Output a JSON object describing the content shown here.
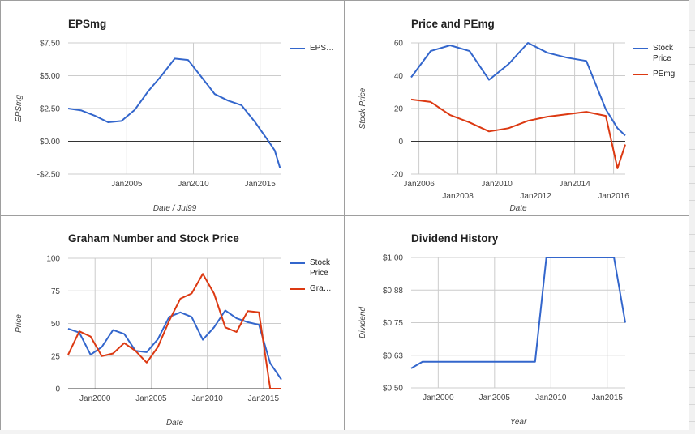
{
  "colors": {
    "blue": "#3366cc",
    "red": "#dc3912",
    "axis": "#333333",
    "grid": "#cccccc",
    "tick": "#444444"
  },
  "panels": [
    {
      "title": "EPSmg",
      "legend": [
        {
          "label": "EPS…",
          "color": "#3366cc"
        }
      ]
    },
    {
      "title": "Price and PEmg",
      "legend": [
        {
          "label": "Stock Price",
          "color": "#3366cc"
        },
        {
          "label": "PEmg",
          "color": "#dc3912"
        }
      ]
    },
    {
      "title": "Graham Number and Stock Price",
      "legend": [
        {
          "label": "Stock Price",
          "color": "#3366cc"
        },
        {
          "label": "Gra…",
          "color": "#dc3912"
        }
      ]
    },
    {
      "title": "Dividend History",
      "legend": []
    }
  ],
  "chart_data": [
    {
      "type": "line",
      "title": "EPSmg",
      "xlabel": "Date / Jul99",
      "ylabel": "EPSmg",
      "xlim": [
        2000.6,
        2016.6
      ],
      "ylim": [
        -2.5,
        7.5
      ],
      "yticks": [
        -2.5,
        0,
        2.5,
        5,
        7.5
      ],
      "ytick_labels": [
        "-$2.50",
        "$0.00",
        "$2.50",
        "$5.00",
        "$7.50"
      ],
      "xticks": [
        2005,
        2010,
        2015
      ],
      "xtick_labels": [
        "Jan2005",
        "Jan2010",
        "Jan2015"
      ],
      "baseline": 0,
      "series": [
        {
          "name": "EPS…",
          "color": "#3366cc",
          "x": [
            2000.6,
            2001.6,
            2002.6,
            2003.6,
            2004.6,
            2005.6,
            2006.6,
            2007.6,
            2008.6,
            2009.6,
            2010.6,
            2011.6,
            2012.6,
            2013.6,
            2014.6,
            2015.6,
            2016.1,
            2016.5
          ],
          "y": [
            2.5,
            2.35,
            1.95,
            1.45,
            1.55,
            2.4,
            3.8,
            5.0,
            6.3,
            6.2,
            4.9,
            3.6,
            3.1,
            2.75,
            1.5,
            0.05,
            -0.7,
            -2.05
          ]
        }
      ]
    },
    {
      "type": "line",
      "title": "Price and PEmg",
      "xlabel": "Date",
      "ylabel": "Stock Price",
      "xlim": [
        2005.6,
        2016.6
      ],
      "ylim": [
        -20,
        60
      ],
      "yticks": [
        -20,
        0,
        20,
        40,
        60
      ],
      "ytick_labels": [
        "-20",
        "0",
        "20",
        "40",
        "60"
      ],
      "xticks": [
        2006,
        2008,
        2010,
        2012,
        2014,
        2016
      ],
      "xtick_labels": [
        "Jan2006",
        "Jan2008",
        "Jan2010",
        "Jan2012",
        "Jan2014",
        "Jan2016"
      ],
      "xtick_staggered": true,
      "baseline": 0,
      "series": [
        {
          "name": "Stock Price",
          "color": "#3366cc",
          "x": [
            2005.6,
            2006.6,
            2007.6,
            2008.6,
            2009.6,
            2010.6,
            2011.6,
            2012.6,
            2013.6,
            2014.6,
            2015.6,
            2016.2,
            2016.6
          ],
          "y": [
            39,
            55,
            58.5,
            55,
            37.5,
            47,
            60,
            54,
            51,
            49,
            19.5,
            8,
            3.5
          ]
        },
        {
          "name": "PEmg",
          "color": "#dc3912",
          "x": [
            2005.6,
            2006.6,
            2007.6,
            2008.6,
            2009.6,
            2010.6,
            2011.6,
            2012.6,
            2013.6,
            2014.6,
            2015.6,
            2016.2,
            2016.6
          ],
          "y": [
            25.5,
            24,
            16,
            11.5,
            6,
            8,
            12.5,
            15,
            16.5,
            18,
            15.5,
            -16.5,
            -2
          ]
        }
      ]
    },
    {
      "type": "line",
      "title": "Graham Number and Stock Price",
      "xlabel": "Date",
      "ylabel": "Price",
      "xlim": [
        1997.6,
        2016.6
      ],
      "ylim": [
        0,
        100
      ],
      "yticks": [
        0,
        25,
        50,
        75,
        100
      ],
      "ytick_labels": [
        "0",
        "25",
        "50",
        "75",
        "100"
      ],
      "xticks": [
        2000,
        2005,
        2010,
        2015
      ],
      "xtick_labels": [
        "Jan2000",
        "Jan2005",
        "Jan2010",
        "Jan2015"
      ],
      "baseline": 0,
      "series": [
        {
          "name": "Stock Price",
          "color": "#3366cc",
          "x": [
            1997.6,
            1998.6,
            1999.6,
            2000.6,
            2001.6,
            2002.6,
            2003.6,
            2004.6,
            2005.6,
            2006.6,
            2007.6,
            2008.6,
            2009.6,
            2010.6,
            2011.6,
            2012.6,
            2013.6,
            2014.6,
            2015.6,
            2016.6
          ],
          "y": [
            46,
            43,
            26,
            32,
            45,
            42,
            29,
            28,
            38,
            55,
            58.5,
            55,
            37.5,
            47,
            60,
            54,
            51,
            49,
            19.5,
            7
          ]
        },
        {
          "name": "Gra…",
          "color": "#dc3912",
          "x": [
            1997.6,
            1998.6,
            1999.6,
            2000.6,
            2001.6,
            2002.6,
            2003.6,
            2004.6,
            2005.6,
            2006.6,
            2007.6,
            2008.6,
            2009.6,
            2010.6,
            2011.6,
            2012.6,
            2013.6,
            2014.6,
            2015.6,
            2016.6
          ],
          "y": [
            26,
            44,
            40,
            25,
            27,
            35,
            29,
            20,
            32,
            52,
            69,
            73,
            88,
            73,
            47,
            43.5,
            59.5,
            58.5,
            0,
            0
          ]
        }
      ]
    },
    {
      "type": "line",
      "title": "Dividend History",
      "xlabel": "Year",
      "ylabel": "Dividend",
      "xlim": [
        1997.6,
        2016.6
      ],
      "ylim": [
        0.5,
        1.0
      ],
      "yticks": [
        0.5,
        0.625,
        0.75,
        0.875,
        1.0
      ],
      "ytick_labels": [
        "$0.50",
        "$0.63",
        "$0.75",
        "$0.88",
        "$1.00"
      ],
      "xticks": [
        2000,
        2005,
        2010,
        2015
      ],
      "xtick_labels": [
        "Jan2000",
        "Jan2005",
        "Jan2010",
        "Jan2015"
      ],
      "series": [
        {
          "name": "Dividend",
          "color": "#3366cc",
          "x": [
            1997.6,
            1998.6,
            1999.6,
            2000.6,
            2001.6,
            2002.6,
            2003.6,
            2004.6,
            2005.6,
            2006.6,
            2007.6,
            2008.6,
            2009.6,
            2010.6,
            2011.6,
            2012.6,
            2013.6,
            2014.6,
            2015.6,
            2016.6
          ],
          "y": [
            0.575,
            0.6,
            0.6,
            0.6,
            0.6,
            0.6,
            0.6,
            0.6,
            0.6,
            0.6,
            0.6,
            0.6,
            1.0,
            1.0,
            1.0,
            1.0,
            1.0,
            1.0,
            1.0,
            0.75
          ]
        }
      ]
    }
  ]
}
